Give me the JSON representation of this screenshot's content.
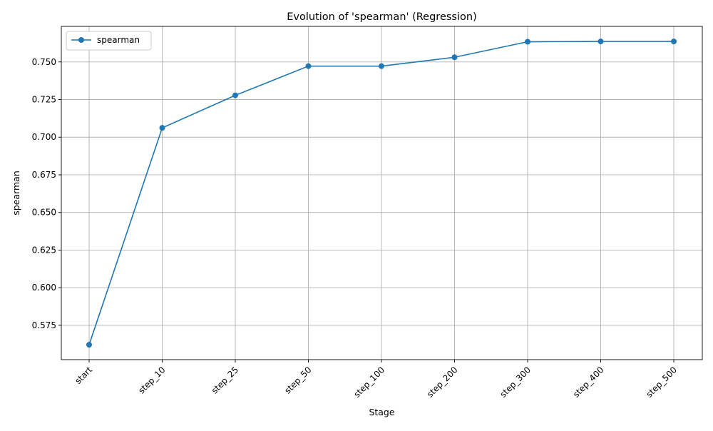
{
  "chart_data": {
    "type": "line",
    "title": "Evolution of 'spearman' (Regression)",
    "xlabel": "Stage",
    "ylabel": "spearman",
    "categories": [
      "start",
      "step_10",
      "step_25",
      "step_50",
      "step_100",
      "step_200",
      "step_300",
      "step_400",
      "step_500"
    ],
    "series": [
      {
        "name": "spearman",
        "color": "#1f77b4",
        "marker": "circle",
        "values": [
          0.5621,
          0.7062,
          0.7278,
          0.7472,
          0.7472,
          0.7531,
          0.7634,
          0.7636,
          0.7636
        ]
      }
    ],
    "ylim": [
      0.5522,
      0.7736
    ],
    "yticks": [
      0.575,
      0.6,
      0.625,
      0.65,
      0.675,
      0.7,
      0.725,
      0.75
    ],
    "ytick_labels": [
      "0.575",
      "0.600",
      "0.625",
      "0.650",
      "0.675",
      "0.700",
      "0.725",
      "0.750"
    ],
    "grid": true,
    "legend_position": "top-left",
    "xtick_rotation": 45
  }
}
